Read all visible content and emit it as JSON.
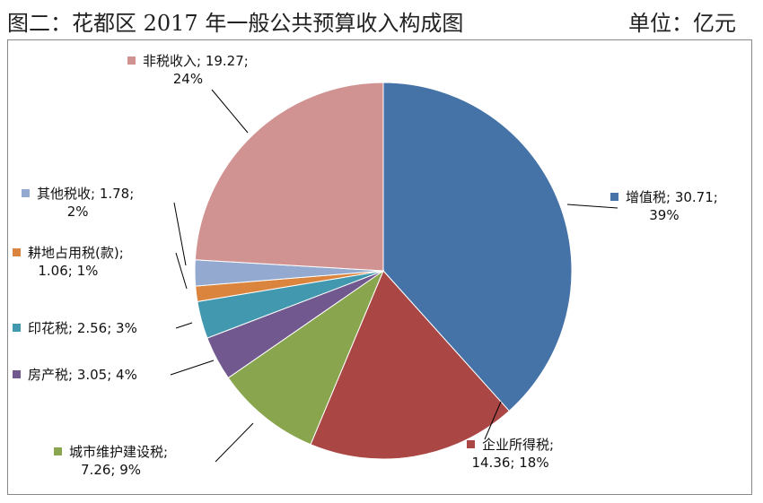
{
  "header": {
    "title": "图二：花都区 2017 年一般公共预算收入构成图",
    "unit": "单位：亿元"
  },
  "chart_data": {
    "type": "pie",
    "title": "图二：花都区 2017 年一般公共预算收入构成图",
    "unit": "单位：亿元",
    "start": "12 o'clock, clockwise",
    "slices": [
      {
        "name": "增值税",
        "value": 30.71,
        "percent": "39%",
        "color": "#4572A7",
        "l1": "增值税; 30.71;",
        "l2": "39%"
      },
      {
        "name": "企业所得税",
        "value": 14.36,
        "percent": "18%",
        "color": "#AA4643",
        "l1": "企业所得税;",
        "l2": "14.36; 18%"
      },
      {
        "name": "城市维护建设税",
        "value": 7.26,
        "percent": "9%",
        "color": "#89A54E",
        "l1": "城市维护建设税;",
        "l2": "7.26; 9%"
      },
      {
        "name": "房产税",
        "value": 3.05,
        "percent": "4%",
        "color": "#71588F",
        "l1": "房产税; 3.05; 4%",
        "l2": ""
      },
      {
        "name": "印花税",
        "value": 2.56,
        "percent": "3%",
        "color": "#4198AF",
        "l1": "印花税; 2.56; 3%",
        "l2": ""
      },
      {
        "name": "耕地占用税(款)",
        "value": 1.06,
        "percent": "1%",
        "color": "#DB843D",
        "l1": "耕地占用税(款);",
        "l2": "1.06; 1%"
      },
      {
        "name": "其他税收",
        "value": 1.78,
        "percent": "2%",
        "color": "#93A9CF",
        "l1": "其他税收; 1.78;",
        "l2": "2%"
      },
      {
        "name": "非税收入",
        "value": 19.27,
        "percent": "24%",
        "color": "#D19392",
        "l1": "非税收入; 19.27;",
        "l2": "24%"
      }
    ]
  }
}
